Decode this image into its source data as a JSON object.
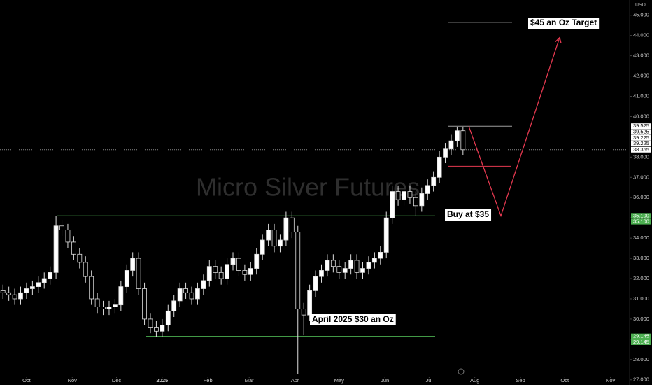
{
  "chart_data": {
    "type": "candlestick",
    "watermark": "Micro Silver Futures",
    "currency": "USD",
    "xlim": [
      -18,
      409
    ],
    "xticks": [
      {
        "value": 0,
        "label": "Oct"
      },
      {
        "value": 31,
        "label": "Nov"
      },
      {
        "value": 61,
        "label": "Dec"
      },
      {
        "value": 92,
        "label": "2025"
      },
      {
        "value": 123,
        "label": "Feb"
      },
      {
        "value": 151,
        "label": "Mar"
      },
      {
        "value": 182,
        "label": "Apr"
      },
      {
        "value": 212,
        "label": "May"
      },
      {
        "value": 243,
        "label": "Jun"
      },
      {
        "value": 273,
        "label": "Jul"
      },
      {
        "value": 304,
        "label": "Aug"
      },
      {
        "value": 335,
        "label": "Sep"
      },
      {
        "value": 365,
        "label": "Oct"
      },
      {
        "value": 396,
        "label": "Nov"
      }
    ],
    "ylim": [
      26.75,
      45.75
    ],
    "yticks": [
      {
        "value": 27,
        "label": "27.000"
      },
      {
        "value": 28,
        "label": "28.000"
      },
      {
        "value": 29,
        "label": "29.000"
      },
      {
        "value": 30,
        "label": "30.000"
      },
      {
        "value": 31,
        "label": "31.000"
      },
      {
        "value": 32,
        "label": "32.000"
      },
      {
        "value": 33,
        "label": "33.000"
      },
      {
        "value": 34,
        "label": "34.000"
      },
      {
        "value": 35,
        "label": "35.000"
      },
      {
        "value": 36,
        "label": "36.000"
      },
      {
        "value": 37,
        "label": "37.000"
      },
      {
        "value": 38,
        "label": "38.000"
      },
      {
        "value": 39,
        "label": "39.000"
      },
      {
        "value": 40,
        "label": "40.000"
      },
      {
        "value": 41,
        "label": "41.000"
      },
      {
        "value": 42,
        "label": "42.000"
      },
      {
        "value": 43,
        "label": "43.000"
      },
      {
        "value": 44,
        "label": "44.000"
      },
      {
        "value": 45,
        "label": "45.000"
      }
    ],
    "x": [
      -16,
      -12,
      -8,
      -4,
      0,
      4,
      8,
      12,
      16,
      20,
      24,
      28,
      32,
      36,
      40,
      44,
      48,
      52,
      56,
      60,
      64,
      68,
      72,
      76,
      80,
      84,
      88,
      92,
      96,
      100,
      104,
      108,
      112,
      116,
      120,
      124,
      128,
      132,
      136,
      140,
      144,
      148,
      152,
      156,
      160,
      164,
      168,
      172,
      176,
      180,
      184,
      188,
      192,
      196,
      200,
      204,
      208,
      212,
      216,
      220,
      224,
      228,
      232,
      236,
      240,
      244,
      248,
      252,
      256,
      260,
      264,
      268,
      272,
      276,
      280,
      284,
      288,
      292,
      296
    ],
    "open": [
      31.4,
      31.3,
      31.2,
      31.0,
      31.3,
      31.5,
      31.6,
      31.8,
      32.0,
      32.3,
      34.6,
      34.4,
      33.8,
      33.2,
      32.8,
      32.1,
      31.0,
      30.6,
      30.5,
      30.6,
      30.7,
      31.6,
      32.4,
      33.0,
      31.5,
      30.0,
      29.6,
      29.4,
      29.7,
      30.4,
      30.9,
      31.5,
      31.3,
      31.0,
      31.5,
      31.9,
      32.6,
      32.3,
      32.0,
      32.7,
      33.0,
      32.4,
      32.2,
      32.5,
      33.2,
      33.9,
      34.4,
      33.6,
      33.9,
      35.0,
      34.3,
      30.5,
      30.2,
      31.4,
      32.1,
      32.4,
      32.9,
      32.6,
      32.3,
      32.5,
      32.9,
      32.3,
      32.5,
      32.8,
      33.0,
      33.3,
      35.0,
      36.3,
      35.9,
      36.3,
      36.0,
      35.6,
      36.2,
      36.6,
      37.0,
      38.0,
      38.4,
      38.8,
      39.3
    ],
    "high": [
      31.7,
      31.6,
      31.5,
      31.6,
      31.8,
      31.9,
      32.1,
      32.3,
      32.6,
      35.1,
      34.9,
      34.7,
      34.1,
      33.5,
      33.1,
      32.4,
      31.3,
      30.9,
      30.9,
      31.0,
      31.9,
      32.7,
      33.3,
      33.3,
      31.8,
      30.3,
      29.9,
      30.0,
      30.7,
      31.2,
      31.8,
      31.8,
      31.6,
      31.8,
      32.2,
      32.9,
      32.9,
      32.6,
      33.0,
      33.3,
      33.3,
      32.7,
      32.8,
      33.5,
      34.2,
      34.7,
      34.7,
      34.2,
      35.3,
      35.3,
      34.6,
      30.8,
      31.7,
      32.4,
      32.7,
      33.2,
      33.2,
      32.9,
      32.8,
      33.2,
      33.2,
      32.8,
      33.1,
      33.3,
      33.6,
      35.3,
      36.6,
      36.6,
      36.6,
      36.6,
      36.3,
      36.5,
      36.9,
      37.3,
      38.3,
      38.7,
      39.1,
      39.5,
      39.5
    ],
    "low": [
      31.0,
      30.9,
      30.7,
      30.7,
      31.0,
      31.2,
      31.3,
      31.5,
      31.7,
      32.0,
      34.1,
      33.5,
      32.9,
      32.5,
      31.8,
      30.7,
      30.3,
      30.2,
      30.2,
      30.3,
      30.4,
      31.3,
      32.1,
      31.2,
      29.7,
      29.3,
      29.1,
      29.1,
      29.4,
      30.1,
      30.6,
      31.0,
      30.7,
      30.7,
      31.2,
      31.6,
      32.0,
      31.7,
      31.7,
      32.4,
      32.1,
      31.9,
      31.9,
      32.2,
      32.9,
      33.6,
      33.3,
      33.3,
      33.6,
      34.0,
      27.3,
      29.2,
      29.9,
      31.1,
      31.8,
      32.1,
      32.3,
      32.0,
      32.0,
      32.2,
      32.0,
      32.0,
      32.2,
      32.5,
      32.7,
      33.0,
      34.7,
      35.6,
      35.6,
      35.7,
      35.1,
      35.3,
      35.9,
      36.3,
      36.7,
      37.7,
      38.1,
      38.5,
      38.1
    ],
    "close": [
      31.3,
      31.2,
      31.0,
      31.3,
      31.5,
      31.6,
      31.8,
      32.0,
      32.3,
      34.6,
      34.4,
      33.8,
      33.2,
      32.8,
      32.1,
      31.0,
      30.6,
      30.5,
      30.6,
      30.7,
      31.6,
      32.4,
      33.0,
      31.5,
      30.0,
      29.6,
      29.4,
      29.7,
      30.4,
      30.9,
      31.5,
      31.3,
      31.0,
      31.5,
      31.9,
      32.6,
      32.3,
      32.0,
      32.7,
      33.0,
      32.4,
      32.2,
      32.5,
      33.2,
      33.9,
      34.4,
      33.6,
      33.9,
      35.0,
      34.3,
      30.5,
      30.2,
      31.4,
      32.1,
      32.4,
      32.9,
      32.6,
      32.3,
      32.5,
      32.9,
      32.3,
      32.5,
      32.8,
      33.0,
      33.3,
      35.0,
      36.3,
      35.9,
      36.3,
      36.0,
      35.6,
      36.2,
      36.6,
      37.0,
      38.0,
      38.4,
      38.8,
      39.3,
      38.365
    ],
    "current_price": {
      "value": 38.365,
      "label": "38.365"
    },
    "price_labels": [
      {
        "value": 39.525,
        "label": "39.525",
        "color": "#ffffff"
      },
      {
        "value": 39.525,
        "label": "39.525",
        "color": "#ffffff"
      },
      {
        "value": 39.225,
        "label": "39.225",
        "color": "#ffffff"
      },
      {
        "value": 39.225,
        "label": "39.225",
        "color": "#ffffff"
      },
      {
        "value": 35.1,
        "label": "35.100",
        "color": "#4caf50"
      },
      {
        "value": 35.1,
        "label": "35.100",
        "color": "#4caf50"
      },
      {
        "value": 29.145,
        "label": "29.145",
        "color": "#4caf50"
      },
      {
        "value": 29.145,
        "label": "29.145",
        "color": "#4caf50"
      }
    ],
    "levels": [
      {
        "value": 35.1,
        "color": "#4caf50"
      },
      {
        "value": 29.145,
        "color": "#4caf50"
      },
      {
        "value": 44.65,
        "color": "#9e9e9e"
      },
      {
        "value": 39.525,
        "color": "#9e9e9e"
      },
      {
        "value": 37.55,
        "color": "#e53950"
      }
    ],
    "projection": {
      "values": [
        39.525,
        35.1,
        43.9
      ],
      "color": "#e53950"
    },
    "annotations": [
      "$45 an Oz Target",
      "Buy at $35",
      "April 2025 $30 an Oz"
    ]
  }
}
